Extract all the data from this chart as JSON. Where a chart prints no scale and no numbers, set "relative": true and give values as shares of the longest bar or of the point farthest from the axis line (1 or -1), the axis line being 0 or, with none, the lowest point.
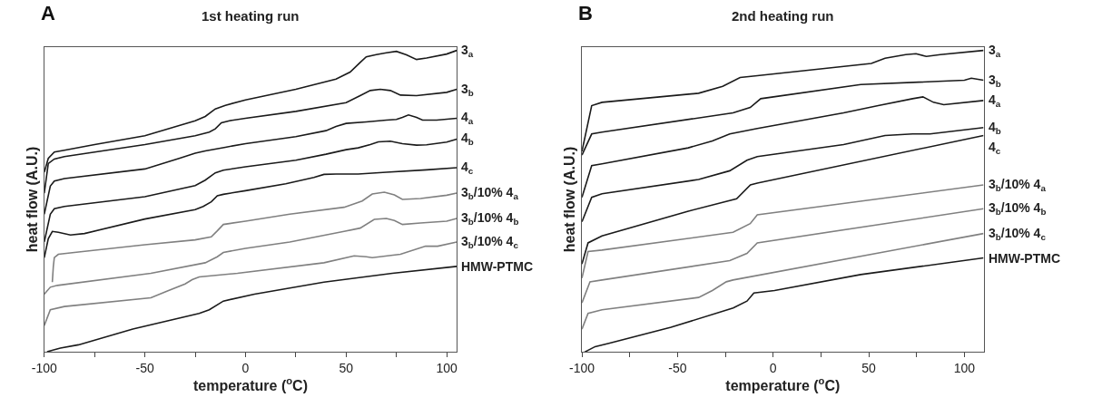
{
  "chart_data": [
    {
      "type": "line",
      "title": "1st heating run",
      "annotations": [
        "A"
      ],
      "xlabel": "temperature ($^{o}$C)",
      "ylabel": "heat flow (A.U.)",
      "relative": true,
      "tick_labels": "x",
      "xlim": [
        -100,
        105
      ],
      "xticks": [
        -100,
        {
          "value": -75,
          "label": null
        },
        -50,
        {
          "value": -25,
          "label": null
        },
        0,
        {
          "value": 25,
          "label": null
        },
        50,
        {
          "value": 75,
          "label": null
        },
        100
      ],
      "series": [
        {
          "name": "3$_{a}$",
          "color": "#1a1a1a",
          "x": [
            -100,
            -98,
            -95,
            -90,
            -75,
            -50,
            -25,
            -20,
            -15,
            -10,
            0,
            25,
            45,
            52,
            57,
            60,
            65,
            70,
            75,
            80,
            85,
            90,
            100,
            105
          ],
          "values": [
            0.596,
            0.642,
            0.663,
            0.669,
            0.688,
            0.717,
            0.767,
            0.781,
            0.806,
            0.818,
            0.836,
            0.871,
            0.905,
            0.928,
            0.96,
            0.979,
            0.986,
            0.992,
            0.997,
            0.985,
            0.97,
            0.975,
            0.988,
            1.0
          ]
        },
        {
          "name": "3$_{b}$",
          "color": "#1a1a1a",
          "x": [
            -100,
            -98,
            -95,
            -90,
            -50,
            -25,
            -18,
            -15,
            -12,
            -8,
            0,
            25,
            50,
            57,
            62,
            67,
            72,
            77,
            85,
            100,
            105
          ],
          "values": [
            0.527,
            0.625,
            0.64,
            0.648,
            0.688,
            0.717,
            0.729,
            0.74,
            0.76,
            0.767,
            0.775,
            0.798,
            0.827,
            0.85,
            0.867,
            0.871,
            0.867,
            0.852,
            0.85,
            0.861,
            0.871
          ]
        },
        {
          "name": "4$_{a}$",
          "color": "#1a1a1a",
          "x": [
            -100,
            -97,
            -95,
            -90,
            -50,
            -33,
            -25,
            -20,
            -10,
            0,
            25,
            40,
            45,
            50,
            60,
            70,
            75,
            78,
            81,
            85,
            88,
            95,
            105
          ],
          "values": [
            0.457,
            0.55,
            0.567,
            0.575,
            0.607,
            0.642,
            0.659,
            0.667,
            0.679,
            0.691,
            0.714,
            0.734,
            0.748,
            0.758,
            0.763,
            0.769,
            0.771,
            0.778,
            0.786,
            0.778,
            0.769,
            0.769,
            0.775
          ]
        },
        {
          "name": "4$_{b}$",
          "color": "#1a1a1a",
          "x": [
            -100,
            -97,
            -95,
            -90,
            -50,
            -25,
            -20,
            -15,
            -11,
            0,
            25,
            40,
            50,
            56,
            62,
            66,
            72,
            78,
            85,
            90,
            100,
            105
          ],
          "values": [
            0.365,
            0.457,
            0.475,
            0.483,
            0.515,
            0.552,
            0.57,
            0.594,
            0.603,
            0.614,
            0.636,
            0.656,
            0.671,
            0.677,
            0.688,
            0.697,
            0.699,
            0.691,
            0.686,
            0.687,
            0.696,
            0.706
          ]
        },
        {
          "name": "4$_{c}$",
          "color": "#1a1a1a",
          "x": [
            -100,
            -98,
            -96,
            -93,
            -87,
            -80,
            -50,
            -25,
            -21,
            -17,
            -14,
            -11,
            0,
            20,
            34,
            39,
            45,
            56,
            70,
            90,
            105
          ],
          "values": [
            0.313,
            0.376,
            0.4,
            0.397,
            0.388,
            0.393,
            0.441,
            0.472,
            0.483,
            0.498,
            0.518,
            0.523,
            0.535,
            0.558,
            0.579,
            0.589,
            0.59,
            0.59,
            0.596,
            0.604,
            0.611
          ]
        },
        {
          "name": "3$_{b}$/10% 4$_{a}$",
          "color": "#808080",
          "x": [
            -96,
            -95.5,
            -95,
            -93,
            -85,
            -50,
            -25,
            -17,
            -14,
            -11,
            0,
            22,
            49,
            58,
            63,
            69,
            74,
            78,
            87,
            100,
            105
          ],
          "values": [
            0.232,
            0.284,
            0.313,
            0.324,
            0.33,
            0.356,
            0.372,
            0.382,
            0.402,
            0.423,
            0.434,
            0.457,
            0.48,
            0.501,
            0.524,
            0.53,
            0.521,
            0.506,
            0.509,
            0.52,
            0.527
          ]
        },
        {
          "name": "3$_{b}$/10% 4$_{b}$",
          "color": "#808080",
          "x": [
            -100,
            -97,
            -93.5,
            -47,
            -20,
            -14,
            -11,
            0,
            22,
            49,
            57,
            64,
            70,
            74,
            78,
            87,
            100,
            105
          ],
          "values": [
            0.192,
            0.215,
            0.221,
            0.261,
            0.296,
            0.316,
            0.33,
            0.344,
            0.365,
            0.4,
            0.411,
            0.44,
            0.443,
            0.436,
            0.423,
            0.428,
            0.434,
            0.443
          ]
        },
        {
          "name": "3$_{b}$/10% 4$_{c}$",
          "color": "#808080",
          "x": [
            -100,
            -97,
            -90,
            -47,
            -38.5,
            -30,
            -26.5,
            -23,
            -4,
            39,
            54,
            60,
            63,
            77,
            89.5,
            95.5,
            105
          ],
          "values": [
            0.088,
            0.14,
            0.151,
            0.18,
            0.203,
            0.226,
            0.24,
            0.249,
            0.261,
            0.296,
            0.319,
            0.316,
            0.313,
            0.324,
            0.351,
            0.351,
            0.365
          ]
        },
        {
          "name": "HMW-PTMC",
          "color": "#1a1a1a",
          "x": [
            -98.6,
            -92,
            -83,
            -56,
            -23,
            -18,
            -11,
            4.5,
            39,
            73,
            105
          ],
          "values": [
            0.001,
            0.013,
            0.024,
            0.076,
            0.128,
            0.14,
            0.169,
            0.192,
            0.232,
            0.261,
            0.284
          ]
        }
      ]
    },
    {
      "type": "line",
      "title": "2nd heating run",
      "annotations": [
        "B"
      ],
      "xlabel": "temperature ($^{o}$C)",
      "ylabel": "heat flow (A.U.)",
      "relative": true,
      "tick_labels": "x",
      "xlim": [
        -100,
        110
      ],
      "xticks": [
        -100,
        {
          "value": -75,
          "label": null
        },
        -50,
        {
          "value": -25,
          "label": null
        },
        0,
        {
          "value": 25,
          "label": null
        },
        50,
        {
          "value": 75,
          "label": null
        },
        100
      ],
      "series": [
        {
          "name": "3$_{a}$",
          "color": "#1a1a1a",
          "x": [
            -100,
            -94.9,
            -89.5,
            -39,
            -26.4,
            -17.3,
            -8.3,
            51.3,
            58.5,
            69.3,
            74.7,
            80.1,
            87.4,
            110
          ],
          "values": [
            0.665,
            0.817,
            0.828,
            0.858,
            0.881,
            0.91,
            0.916,
            0.957,
            0.974,
            0.986,
            0.989,
            0.98,
            0.986,
            1.0
          ]
        },
        {
          "name": "3$_{b}$",
          "color": "#1a1a1a",
          "x": [
            -100,
            -94.9,
            -89.5,
            -21,
            -12,
            -6.5,
            45.8,
            100,
            103.6,
            110
          ],
          "values": [
            0.653,
            0.723,
            0.729,
            0.793,
            0.811,
            0.84,
            0.887,
            0.901,
            0.908,
            0.901
          ]
        },
        {
          "name": "4$_{a}$",
          "color": "#1a1a1a",
          "x": [
            -100,
            -94.9,
            -89.5,
            -44.4,
            -31.8,
            -22.7,
            -8.3,
            36.8,
            54.9,
            72.9,
            78.3,
            83.8,
            89.2,
            110
          ],
          "values": [
            0.513,
            0.618,
            0.624,
            0.677,
            0.7,
            0.723,
            0.741,
            0.793,
            0.817,
            0.84,
            0.846,
            0.828,
            0.82,
            0.834
          ]
        },
        {
          "name": "4$_{b}$",
          "color": "#1a1a1a",
          "x": [
            -100,
            -94.9,
            -89.5,
            -39,
            -22.7,
            -13.7,
            -8.3,
            36.8,
            58.5,
            72.9,
            82,
            110
          ],
          "values": [
            0.432,
            0.513,
            0.525,
            0.572,
            0.601,
            0.636,
            0.648,
            0.688,
            0.718,
            0.723,
            0.723,
            0.744
          ]
        },
        {
          "name": "4$_{c}$",
          "color": "#1a1a1a",
          "x": [
            -100,
            -96.8,
            -89.5,
            -44.4,
            -19.1,
            -11.9,
            -8.3,
            110
          ],
          "values": [
            0.292,
            0.362,
            0.385,
            0.467,
            0.508,
            0.554,
            0.56,
            0.718
          ]
        },
        {
          "name": "3$_{b}$/10% 4$_{a}$",
          "color": "#808080",
          "x": [
            -100,
            -96.8,
            -89.5,
            -21,
            -12,
            -8.3,
            110
          ],
          "values": [
            0.245,
            0.333,
            0.338,
            0.397,
            0.426,
            0.455,
            0.554
          ]
        },
        {
          "name": "3$_{b}$/10% 4$_{b}$",
          "color": "#808080",
          "x": [
            -100,
            -95.8,
            -89.5,
            -22.7,
            -13.7,
            -8.3,
            110
          ],
          "values": [
            0.163,
            0.233,
            0.239,
            0.303,
            0.327,
            0.362,
            0.475
          ]
        },
        {
          "name": "3$_{b}$/10% 4$_{c}$",
          "color": "#808080",
          "x": [
            -100,
            -96.8,
            -89.5,
            -39,
            -31.8,
            -24.5,
            -21,
            110
          ],
          "values": [
            0.076,
            0.128,
            0.14,
            0.181,
            0.204,
            0.233,
            0.239,
            0.393
          ]
        },
        {
          "name": "HMW-PTMC",
          "color": "#1a1a1a",
          "x": [
            -98.6,
            -93.1,
            -85.9,
            -53.4,
            -20.9,
            -13.7,
            -10.1,
            0.7,
            45.8,
            110
          ],
          "values": [
            0.0,
            0.018,
            0.029,
            0.082,
            0.146,
            0.169,
            0.196,
            0.204,
            0.257,
            0.312
          ]
        }
      ]
    }
  ]
}
